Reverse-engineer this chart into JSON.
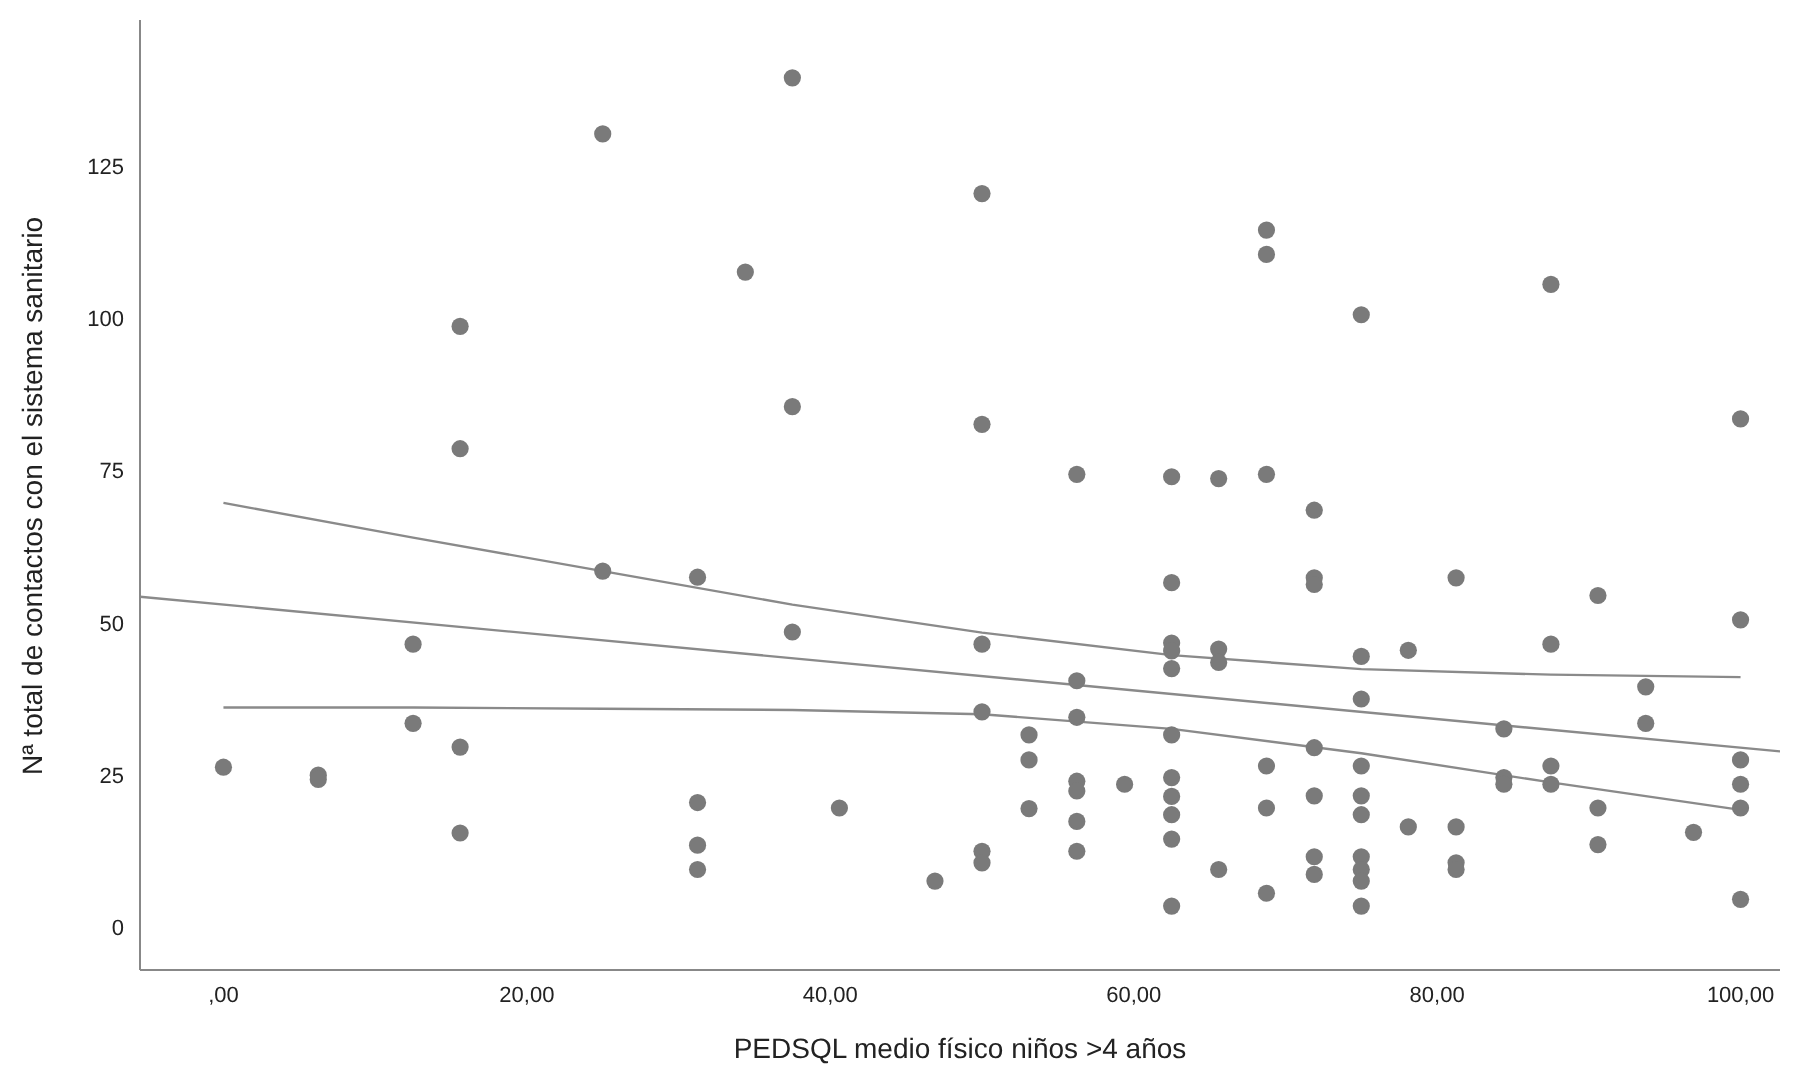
{
  "chart_data": {
    "type": "scatter",
    "xlabel": "PEDSQL medio físico niños >4 años",
    "ylabel": "Nª total de contactos con el sistema sanitario",
    "xlim": [
      -5.5,
      102.6
    ],
    "ylim": [
      -7,
      149
    ],
    "xticks": [
      {
        "value": 0,
        "label": ",00"
      },
      {
        "value": 20,
        "label": "20,00"
      },
      {
        "value": 40,
        "label": "40,00"
      },
      {
        "value": 60,
        "label": "60,00"
      },
      {
        "value": 80,
        "label": "80,00"
      },
      {
        "value": 100,
        "label": "100,00"
      }
    ],
    "yticks": [
      0,
      25,
      50,
      75,
      100,
      125
    ],
    "grid": false,
    "series": [
      {
        "marker": "circle",
        "color": "#7a7a7a",
        "x": [
          0,
          6.25,
          6.25,
          12.5,
          12.5,
          15.6,
          15.6,
          15.6,
          15.6,
          25,
          25,
          31.25,
          31.25,
          31.25,
          31.25,
          34.4,
          37.5,
          37.5,
          37.5,
          40.6,
          46.9,
          50,
          50,
          50,
          50,
          50,
          50,
          53.1,
          53.1,
          53.1,
          56.25,
          56.25,
          56.25,
          56.25,
          56.25,
          56.25,
          56.25,
          59.4,
          62.5,
          62.5,
          62.5,
          62.5,
          62.5,
          62.5,
          62.5,
          62.5,
          62.5,
          62.5,
          62.5,
          65.6,
          65.6,
          65.6,
          65.6,
          68.75,
          68.75,
          68.75,
          68.75,
          68.75,
          68.75,
          71.9,
          71.9,
          71.9,
          71.9,
          71.9,
          71.9,
          71.9,
          75,
          75,
          75,
          75,
          75,
          75,
          75,
          75,
          75,
          75,
          78.1,
          78.1,
          81.25,
          81.25,
          81.25,
          81.25,
          84.4,
          84.4,
          84.4,
          87.5,
          87.5,
          87.5,
          87.5,
          90.6,
          90.6,
          90.6,
          93.75,
          93.75,
          96.9,
          100,
          100,
          100,
          100,
          100,
          100
        ],
        "values": [
          26.3,
          25,
          24.3,
          46.5,
          33.5,
          98.7,
          78.6,
          29.6,
          15.5,
          130.3,
          58.5,
          57.5,
          20.5,
          13.5,
          9.5,
          107.6,
          139.5,
          85.5,
          48.5,
          19.6,
          7.6,
          120.5,
          82.6,
          46.5,
          35.4,
          12.5,
          10.6,
          31.6,
          27.5,
          19.5,
          74.4,
          40.5,
          34.5,
          24,
          22.4,
          17.4,
          12.5,
          23.5,
          56.6,
          46.7,
          45.4,
          42.5,
          31.6,
          24.6,
          21.5,
          18.5,
          14.5,
          3.5,
          74,
          45.7,
          43.5,
          9.5,
          73.7,
          114.5,
          110.5,
          74.4,
          26.5,
          19.6,
          5.6,
          68.5,
          57.4,
          56.3,
          29.5,
          21.6,
          11.6,
          8.7,
          100.6,
          44.5,
          37.5,
          26.5,
          21.6,
          18.5,
          11.6,
          9.5,
          7.6,
          3.5,
          45.5,
          16.5,
          57.4,
          16.5,
          10.6,
          9.5,
          32.6,
          24.6,
          23.5,
          105.6,
          46.5,
          26.5,
          23.5,
          54.5,
          19.6,
          13.6,
          39.5,
          33.5,
          15.6,
          83.5,
          50.5,
          27.5,
          23.5,
          19.6,
          4.6
        ]
      },
      {
        "type": "line",
        "marker": "none",
        "color": "#8a8a8a",
        "x": [
          -5.5,
          102.6
        ],
        "values": [
          54.3,
          28.9
        ]
      },
      {
        "type": "line",
        "marker": "none",
        "color": "#8a8a8a",
        "x": [
          0,
          12.5,
          25,
          37.5,
          50,
          62.5,
          75,
          87.5,
          100
        ],
        "values": [
          69.7,
          64,
          58.5,
          53,
          48.4,
          44.7,
          42.4,
          41.5,
          41.1
        ]
      },
      {
        "type": "line",
        "marker": "none",
        "color": "#8a8a8a",
        "x": [
          0,
          12.5,
          25,
          37.5,
          50,
          62.5,
          75,
          87.5,
          100
        ],
        "values": [
          36.1,
          36.1,
          35.9,
          35.7,
          35,
          32.6,
          28.6,
          23.8,
          19.3
        ]
      }
    ]
  }
}
